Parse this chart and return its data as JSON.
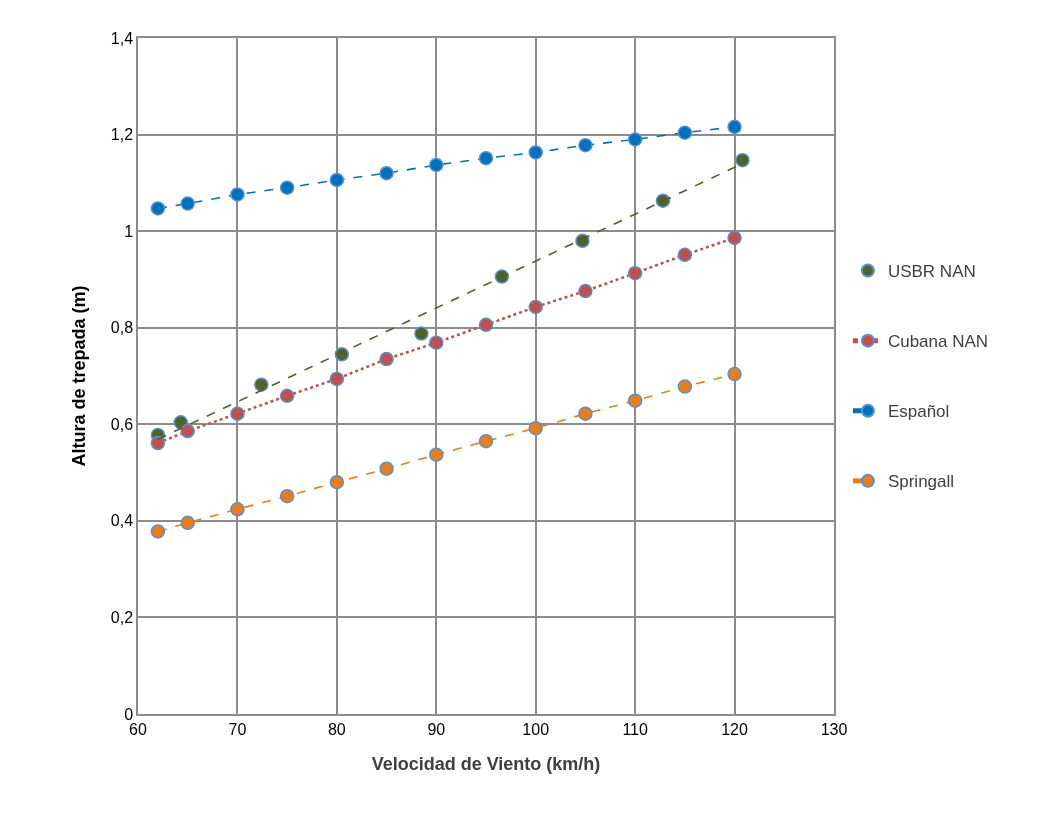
{
  "chart_data": {
    "type": "scatter",
    "xlabel": "Velocidad de Viento (km/h)",
    "ylabel": "Altura de trepada (m)",
    "xlim": [
      60,
      130
    ],
    "xticks": [
      60,
      70,
      80,
      90,
      100,
      110,
      120,
      130
    ],
    "ylim": [
      0,
      1.4
    ],
    "yticks": [
      {
        "value": 0,
        "label": "0"
      },
      {
        "value": 0.2,
        "label": "0,2"
      },
      {
        "value": 0.4,
        "label": "0,4"
      },
      {
        "value": 0.6,
        "label": "0,6"
      },
      {
        "value": 0.8,
        "label": "0,8"
      },
      {
        "value": 1,
        "label": "1"
      },
      {
        "value": 1.2,
        "label": "1,2"
      },
      {
        "value": 1.4,
        "label": "1,4"
      }
    ],
    "grid": true,
    "legend": "right",
    "marker": "circle",
    "series": [
      {
        "name": "USBR NAN",
        "color": "#4f6228",
        "x": [
          62,
          64.3,
          72.4,
          80.5,
          88.5,
          96.6,
          104.7,
          112.8,
          120.8
        ],
        "values": [
          0.578,
          0.604,
          0.682,
          0.745,
          0.788,
          0.906,
          0.98,
          1.063,
          1.147
        ]
      },
      {
        "name": "Cubana NAN",
        "type": "line",
        "color": "#c0504d",
        "line_style": "dotted",
        "x": [
          62,
          65,
          70,
          75,
          80,
          85,
          90,
          95,
          100,
          105,
          110,
          115,
          120
        ],
        "values": [
          0.561,
          0.586,
          0.622,
          0.659,
          0.694,
          0.735,
          0.769,
          0.806,
          0.843,
          0.876,
          0.913,
          0.951,
          0.986
        ]
      },
      {
        "name": "Español",
        "type": "line",
        "color": "#0070c0",
        "line_style": "dashed",
        "x": [
          62,
          65,
          70,
          75,
          80,
          85,
          90,
          95,
          100,
          105,
          110,
          115,
          120
        ],
        "values": [
          1.047,
          1.057,
          1.076,
          1.09,
          1.106,
          1.12,
          1.137,
          1.151,
          1.163,
          1.178,
          1.19,
          1.204,
          1.216
        ]
      },
      {
        "name": "Springall",
        "type": "line",
        "color": "#e87d1e",
        "line_style": "dashed",
        "x": [
          62,
          65,
          70,
          75,
          80,
          85,
          90,
          95,
          100,
          105,
          110,
          115,
          120
        ],
        "values": [
          0.378,
          0.396,
          0.424,
          0.451,
          0.48,
          0.508,
          0.537,
          0.565,
          0.592,
          0.622,
          0.649,
          0.678,
          0.704
        ]
      },
      {
        "type": "line",
        "color": "#4f6228",
        "line_style": "dashed",
        "marker": "none",
        "x": [
          62,
          120.8
        ],
        "values": [
          0.569,
          1.14
        ]
      }
    ]
  }
}
